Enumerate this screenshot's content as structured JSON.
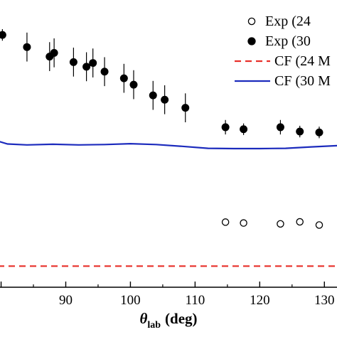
{
  "chart_data": {
    "type": "scatter",
    "title": "",
    "xlabel": "θ",
    "xlabel_subscript": "lab",
    "xlabel_unit": "(deg)",
    "xlim": [
      79.5,
      132.5
    ],
    "ylim": [
      0,
      1
    ],
    "xticks": [
      80,
      90,
      100,
      110,
      120,
      130
    ],
    "xtick_labels": [
      "",
      "90",
      "100",
      "110",
      "120",
      "130"
    ],
    "grid": false,
    "legend_position": "top-right",
    "legend": [
      {
        "label": "Exp (24",
        "marker": "open-circle"
      },
      {
        "label": "Exp (30",
        "marker": "filled-circle"
      },
      {
        "label": "CF (24 M",
        "line": "dashed",
        "color": "#e8302a"
      },
      {
        "label": "CF (30 M",
        "line": "solid",
        "color": "#1c2bbd"
      }
    ],
    "series": [
      {
        "marker": "filled-circle",
        "color": "#000000",
        "points": [
          {
            "x": 80.2,
            "y": 0.872,
            "err": 0.02
          },
          {
            "x": 84.0,
            "y": 0.83,
            "err": 0.05
          },
          {
            "x": 87.5,
            "y": 0.797,
            "err": 0.05
          },
          {
            "x": 88.2,
            "y": 0.81,
            "err": 0.05
          },
          {
            "x": 91.2,
            "y": 0.778,
            "err": 0.05
          },
          {
            "x": 93.2,
            "y": 0.762,
            "err": 0.05
          },
          {
            "x": 94.2,
            "y": 0.775,
            "err": 0.05
          },
          {
            "x": 96.0,
            "y": 0.745,
            "err": 0.05
          },
          {
            "x": 99.0,
            "y": 0.722,
            "err": 0.05
          },
          {
            "x": 100.5,
            "y": 0.7,
            "err": 0.05
          },
          {
            "x": 103.5,
            "y": 0.663,
            "err": 0.05
          },
          {
            "x": 105.3,
            "y": 0.648,
            "err": 0.05
          },
          {
            "x": 108.5,
            "y": 0.62,
            "err": 0.05
          },
          {
            "x": 114.7,
            "y": 0.553,
            "err": 0.025
          },
          {
            "x": 117.5,
            "y": 0.546,
            "err": 0.02
          },
          {
            "x": 123.2,
            "y": 0.553,
            "err": 0.025
          },
          {
            "x": 126.2,
            "y": 0.538,
            "err": 0.02
          },
          {
            "x": 129.2,
            "y": 0.535,
            "err": 0.02
          }
        ]
      },
      {
        "marker": "open-circle",
        "color": "#000000",
        "points": [
          {
            "x": 114.7,
            "y": 0.225
          },
          {
            "x": 117.5,
            "y": 0.222
          },
          {
            "x": 123.2,
            "y": 0.219
          },
          {
            "x": 126.2,
            "y": 0.226
          },
          {
            "x": 129.2,
            "y": 0.215
          }
        ]
      },
      {
        "line": "solid",
        "color": "#1c2bbd",
        "x": [
          79.5,
          81,
          84,
          88,
          92,
          96,
          100,
          104,
          108,
          112,
          116,
          120,
          124,
          128,
          132.5
        ],
        "y": [
          0.505,
          0.495,
          0.492,
          0.494,
          0.492,
          0.493,
          0.496,
          0.493,
          0.487,
          0.48,
          0.479,
          0.479,
          0.48,
          0.485,
          0.49
        ]
      },
      {
        "line": "dashed",
        "color": "#e8302a",
        "x": [
          79.5,
          132.5
        ],
        "y": [
          0.073,
          0.073
        ]
      }
    ]
  }
}
